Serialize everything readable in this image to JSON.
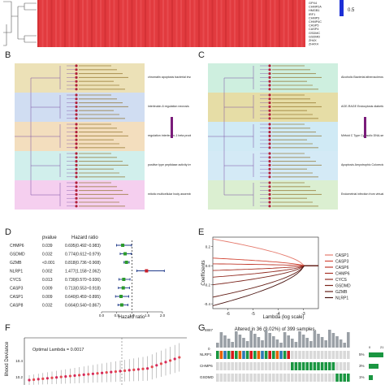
{
  "panel_a": {
    "gene_labels": [
      "GPX4",
      "CHMP2A",
      "HMGB1",
      "IRF1",
      "CHMP3",
      "CHMP4C",
      "CASP5",
      "CASP4",
      "GSDMC",
      "GSDMD",
      "ZH4X",
      "ZH4X4"
    ],
    "legend_value": "0.5",
    "colors": {
      "heat": "#e23b3f",
      "heat_dark": "#c92a2e",
      "legend": "#1c2fd6"
    }
  },
  "panel_b": {
    "label": "B",
    "cluster_labels": [
      "chromatin apoptosis bacterial involvement",
      "interleukin-6 regulation necrosis",
      "regulation interleukin-1 beta production",
      "positive type peptidase activity involved",
      "mitotic multicellular body assembly"
    ],
    "cluster_colors": [
      "#e9dcaa",
      "#c8d7f0",
      "#f1d8b3",
      "#c9ece9",
      "#f3c7ec"
    ]
  },
  "panel_c": {
    "label": "C",
    "cluster_labels": [
      "Alcoholic Bacterial atherosclerosis virus",
      "AGE-RAGE Endocytosis diabetic complications",
      "Mirfoid C Type Cytosolic DNA-sensing",
      "Apoptosis Amyotrophic Colorectal drug",
      "Endometrial infection from virtual Pancreatic"
    ],
    "cluster_colors": [
      "#c5ecd9",
      "#e2d797",
      "#c8e6f3",
      "#cde6f5",
      "#d5ecc9"
    ]
  },
  "panel_d": {
    "label": "D",
    "col_pvalue": "pvalue",
    "col_hr": "Hazard ratio",
    "xlabel": "Hazard ratio",
    "rows": [
      {
        "gene": "CHMP6",
        "pvalue": "0.039",
        "hr_text": "0.695(0.492~0.983)",
        "hr": 0.695,
        "lo": 0.492,
        "hi": 0.983
      },
      {
        "gene": "GSDMD",
        "pvalue": "0.032",
        "hr_text": "0.774(0.612~0.979)",
        "hr": 0.774,
        "lo": 0.612,
        "hi": 0.979
      },
      {
        "gene": "GZMB",
        "pvalue": "<0.001",
        "hr_text": "0.818(0.736~0.908)",
        "hr": 0.818,
        "lo": 0.736,
        "hi": 0.908
      },
      {
        "gene": "NLRP1",
        "pvalue": "0.002",
        "hr_text": "1.477(1.158~2.062)",
        "hr": 1.477,
        "lo": 1.158,
        "hi": 2.062
      },
      {
        "gene": "CYCS",
        "pvalue": "0.013",
        "hr_text": "0.730(0.570~0.936)",
        "hr": 0.73,
        "lo": 0.57,
        "hi": 0.936
      },
      {
        "gene": "CASP3",
        "pvalue": "0.009",
        "hr_text": "0.713(0.553~0.918)",
        "hr": 0.713,
        "lo": 0.553,
        "hi": 0.918
      },
      {
        "gene": "CASP1",
        "pvalue": "0.009",
        "hr_text": "0.640(0.459~0.895)",
        "hr": 0.64,
        "lo": 0.459,
        "hi": 0.895
      },
      {
        "gene": "CASP8",
        "pvalue": "0.032",
        "hr_text": "0.664(0.540~0.867)",
        "hr": 0.664,
        "lo": 0.54,
        "hi": 0.867
      }
    ],
    "ticks": [
      "0.0",
      "0.5",
      "1.0",
      "1.5",
      "2.0"
    ],
    "colors": {
      "protective": "#2b9a2b",
      "risk": "#c8202b",
      "whisker": "#1f3a8a"
    }
  },
  "panel_e": {
    "label": "E",
    "xlabel": "Lambda (log scale)",
    "ylabel": "Coefficients",
    "x_ticks": [
      "-6",
      "-5",
      "-4",
      "-3"
    ],
    "y_ticks": [
      "0.2",
      "0.0",
      "-0.2",
      "-0.4"
    ],
    "legend": [
      {
        "name": "CASP1",
        "color": "#e57a6d"
      },
      {
        "name": "CASP3",
        "color": "#d44a3a"
      },
      {
        "name": "CASP6",
        "color": "#c0392b"
      },
      {
        "name": "CHMP6",
        "color": "#a93226"
      },
      {
        "name": "CYCS",
        "color": "#922b21"
      },
      {
        "name": "GSDMD",
        "color": "#7b241c"
      },
      {
        "name": "GZMB",
        "color": "#641e16"
      },
      {
        "name": "NLRP1",
        "color": "#4a1410"
      }
    ]
  },
  "panel_f": {
    "label": "F",
    "ylabel": "lihood Deviance",
    "annotation": "Optimal Lambda = 0.0017",
    "y_ticks": [
      "10.4",
      "10.2"
    ]
  },
  "panel_g": {
    "label": "G",
    "title": "Altered in 36 (9.02%) of 399 samples.",
    "y_top": "8887",
    "y_zero": "0",
    "genes": [
      {
        "name": "NLRP1",
        "pct": "5%"
      },
      {
        "name": "CHMP6",
        "pct": "3%"
      },
      {
        "name": "GSDMD",
        "pct": "1%"
      }
    ],
    "right_axis": [
      "0",
      "21"
    ]
  }
}
